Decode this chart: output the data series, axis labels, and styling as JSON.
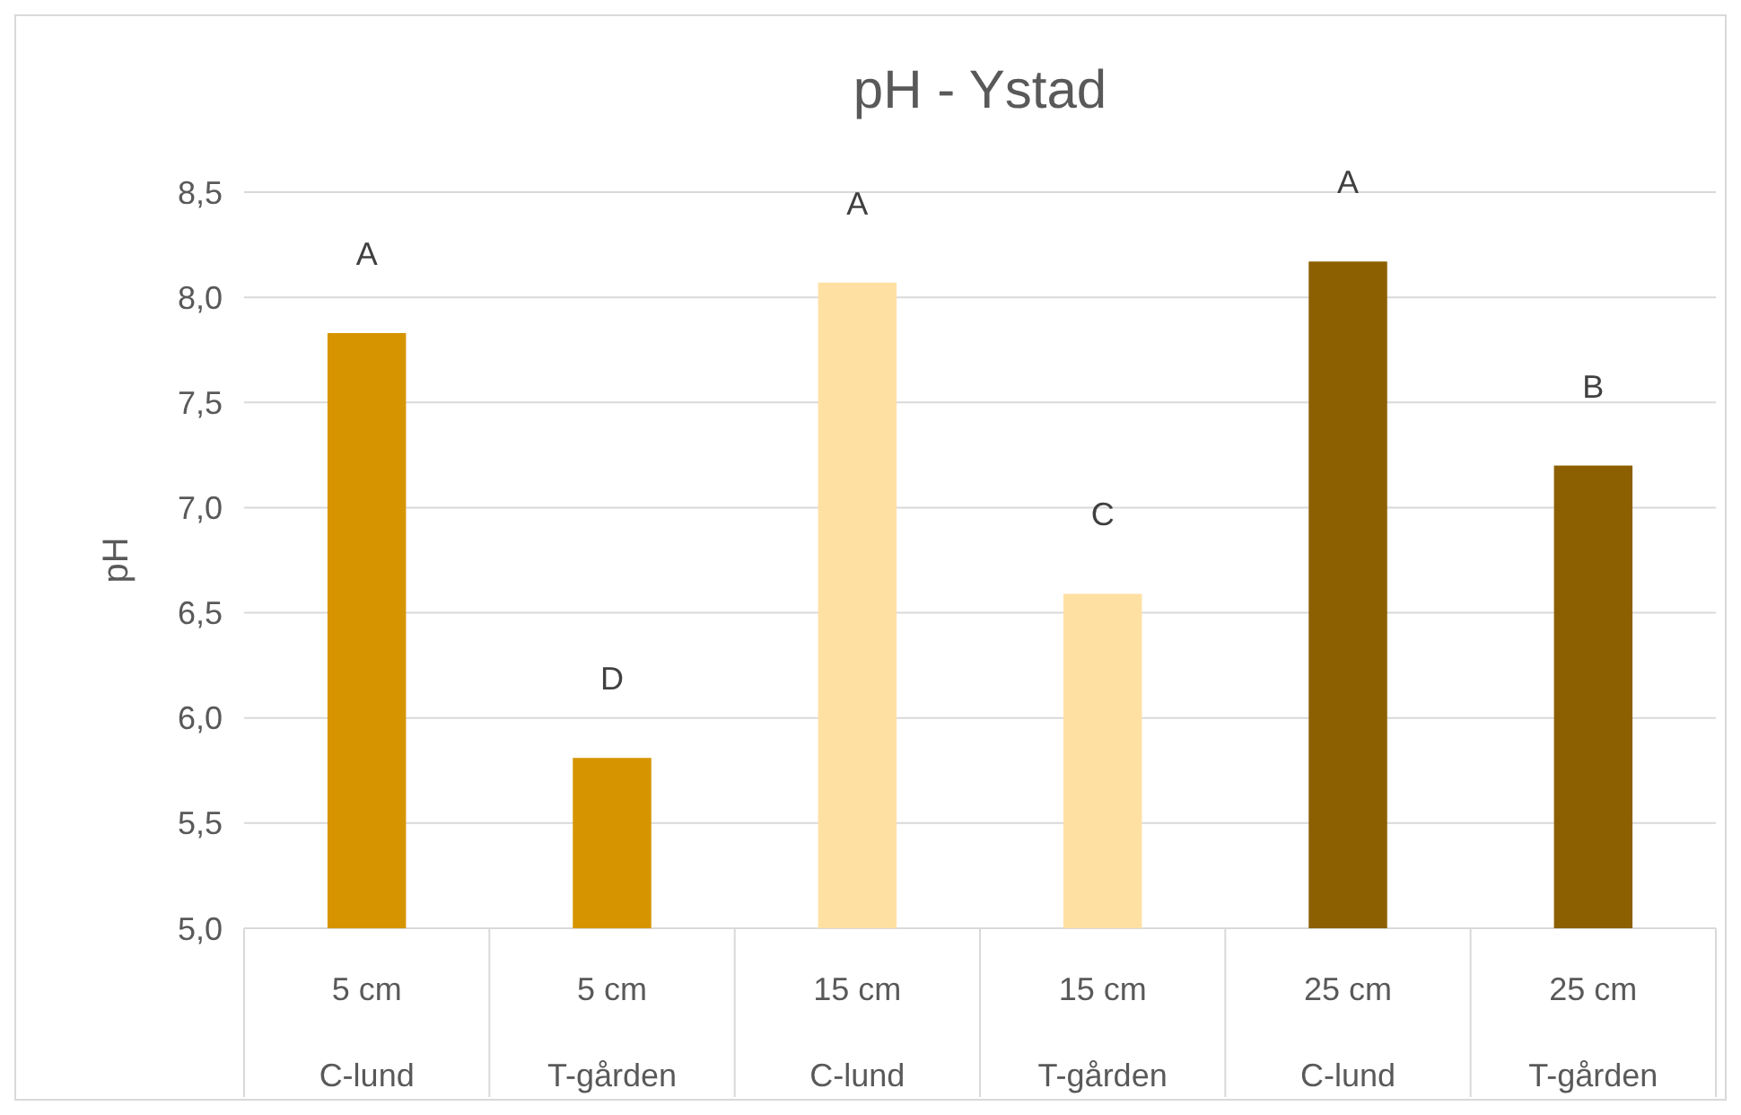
{
  "chart_data": {
    "type": "bar",
    "title": "pH - Ystad",
    "ylabel": "pH",
    "categories": [
      "5 cm\nC-lund",
      "5 cm\nT-gården",
      "15 cm\nC-lund",
      "15 cm\nT-gården",
      "25 cm\nC-lund",
      "25 cm\nT-gården"
    ],
    "values": [
      7.83,
      5.81,
      8.07,
      6.59,
      8.17,
      7.2
    ],
    "colors": [
      "#d69500",
      "#d69500",
      "#ffe0a3",
      "#ffe0a3",
      "#8c6000",
      "#8c6000"
    ],
    "value_labels": [
      "A",
      "D",
      "A",
      "C",
      "A",
      "B"
    ],
    "ylim": [
      5,
      8.5
    ],
    "yticks": [
      {
        "value": 5,
        "label": "5,0"
      },
      {
        "value": 5.5,
        "label": "5,5"
      },
      {
        "value": 6,
        "label": "6,0"
      },
      {
        "value": 6.5,
        "label": "6,5"
      },
      {
        "value": 7,
        "label": "7,0"
      },
      {
        "value": 7.5,
        "label": "7,5"
      },
      {
        "value": 8,
        "label": "8,0"
      },
      {
        "value": 8.5,
        "label": "8,5"
      }
    ],
    "grid": true
  }
}
